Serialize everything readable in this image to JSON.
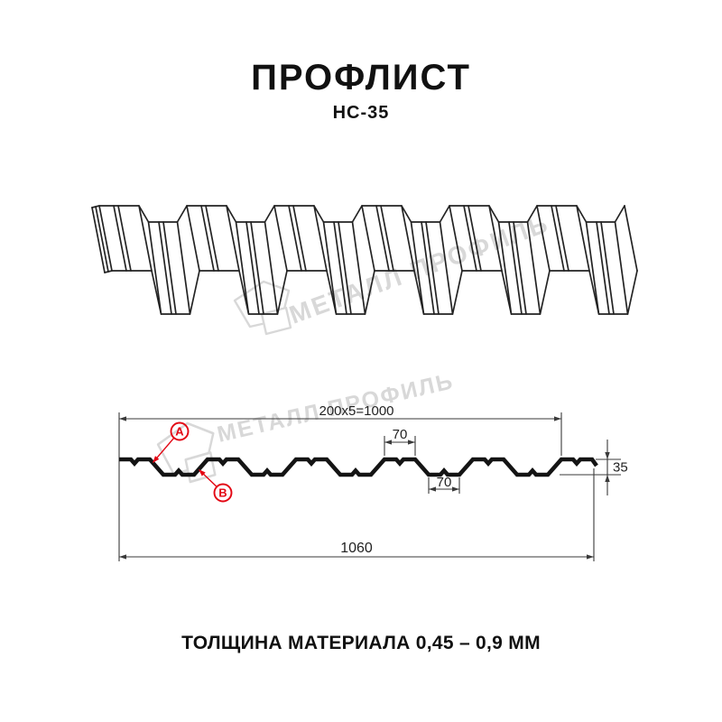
{
  "header": {
    "title": "ПРОФЛИСТ",
    "subtitle": "НС-35"
  },
  "watermark": {
    "text": "МЕТАЛЛ ПРОФИЛЬ",
    "color": "#d8d8d8"
  },
  "section_diagram": {
    "dim_pitch": "200x5=1000",
    "dim_top_flat": "70",
    "dim_bottom_flat": "70",
    "dim_height": "35",
    "dim_overall": "1060",
    "label_a": "A",
    "label_b": "B"
  },
  "footer": {
    "text": "ТОЛЩИНА МАТЕРИАЛА 0,45 – 0,9 ММ"
  },
  "colors": {
    "accent_red": "#e30613",
    "line": "#1a1a1a",
    "watermark_gray": "#d8d8d8"
  }
}
